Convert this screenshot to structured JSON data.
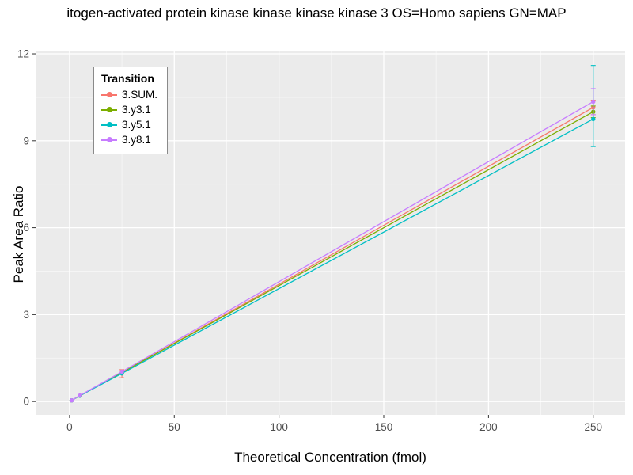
{
  "chart_data": {
    "type": "line",
    "title": "itogen-activated protein kinase kinase kinase kinase 3 OS=Homo sapiens GN=MAP",
    "xlabel": "Theoretical Concentration (fmol)",
    "ylabel": "Peak Area Ratio",
    "legend_title": "Transition",
    "legend_position": "top-left-inside",
    "grid": true,
    "panel_bg": "#EBEBEB",
    "grid_color": "#FFFFFF",
    "tick_label_color": "#4D4D4D",
    "x": [
      1,
      5,
      25,
      250
    ],
    "x_ticks": [
      0,
      50,
      100,
      150,
      200,
      250
    ],
    "y_ticks": [
      0,
      3,
      6,
      9,
      12
    ],
    "x_minor": [
      25,
      75,
      125,
      175,
      225
    ],
    "y_minor": [
      1.5,
      4.5,
      7.5,
      10.5
    ],
    "xlim": [
      -16.2,
      265.2
    ],
    "ylim": [
      -0.46,
      12.11
    ],
    "series": [
      {
        "name": "3.SUM.",
        "color": "#F8766D",
        "values": [
          0.04,
          0.2,
          1.0,
          10.15
        ],
        "errorbars": [
          {
            "x": 25,
            "ymin": 0.82,
            "ymax": 1.1
          },
          {
            "x": 250,
            "ymin": 9.9,
            "ymax": 10.4
          }
        ]
      },
      {
        "name": "3.y3.1",
        "color": "#7CAE00",
        "values": [
          0.04,
          0.2,
          1.0,
          10.0
        ],
        "errorbars": [
          {
            "x": 250,
            "ymin": 9.8,
            "ymax": 10.2
          }
        ]
      },
      {
        "name": "3.y5.1",
        "color": "#00BFC4",
        "values": [
          0.04,
          0.2,
          0.97,
          9.75
        ],
        "errorbars": [
          {
            "x": 250,
            "ymin": 8.8,
            "ymax": 11.6
          }
        ]
      },
      {
        "name": "3.y8.1",
        "color": "#C77CFF",
        "values": [
          0.04,
          0.21,
          1.03,
          10.35
        ],
        "errorbars": [
          {
            "x": 250,
            "ymin": 9.9,
            "ymax": 10.8
          }
        ]
      }
    ]
  }
}
